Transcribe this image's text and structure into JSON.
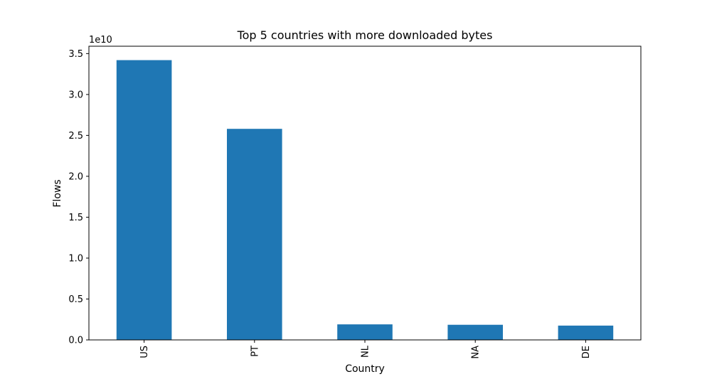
{
  "chart_data": {
    "type": "bar",
    "title": "Top 5 countries with more downloaded bytes",
    "xlabel": "Country",
    "ylabel": "Flows",
    "y_offset_label": "1e10",
    "y_scale": 10000000000,
    "categories": [
      "US",
      "PT",
      "NL",
      "NA",
      "DE"
    ],
    "values": [
      34200000000,
      25800000000,
      1900000000,
      1850000000,
      1750000000
    ],
    "ylim": [
      0,
      35900000000
    ],
    "yticks": [
      0,
      5000000000,
      10000000000,
      15000000000,
      20000000000,
      25000000000,
      30000000000,
      35000000000
    ],
    "ytick_labels": [
      "0.0",
      "0.5",
      "1.0",
      "1.5",
      "2.0",
      "2.5",
      "3.0",
      "3.5"
    ],
    "grid": false,
    "bar_color": "#1f77b4",
    "x_tick_rotation_deg": 90
  }
}
